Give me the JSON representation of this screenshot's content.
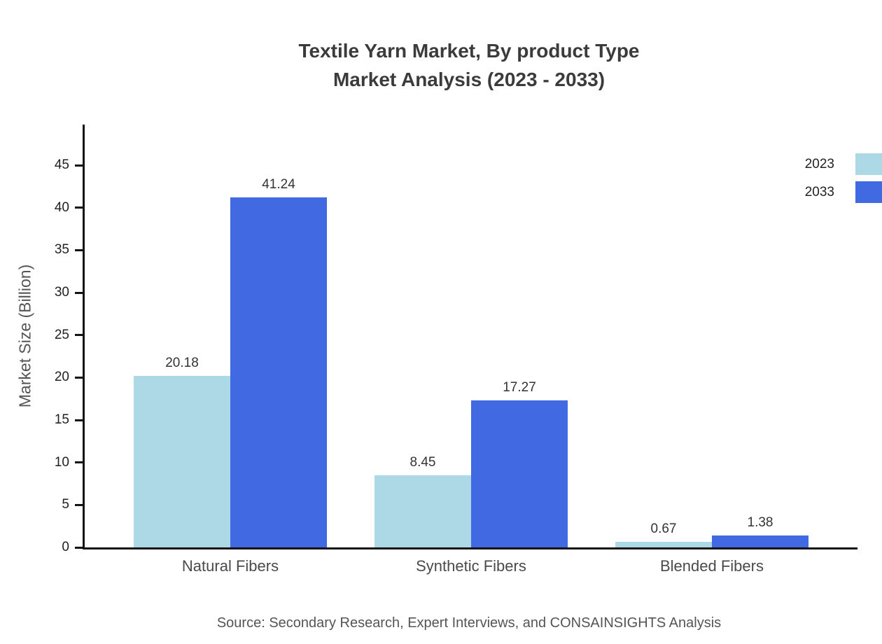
{
  "title": {
    "line1": "Textile Yarn Market, By product Type",
    "line2": "Market Analysis (2023 - 2033)"
  },
  "chart_data": {
    "type": "bar",
    "title": "Textile Yarn Market, By product Type Market Analysis (2023 - 2033)",
    "categories": [
      "Natural Fibers",
      "Synthetic Fibers",
      "Blended Fibers"
    ],
    "series": [
      {
        "name": "2023",
        "color": "#add8e6",
        "values": [
          20.18,
          8.45,
          0.67
        ]
      },
      {
        "name": "2033",
        "color": "#4169e1",
        "values": [
          41.24,
          17.27,
          1.38
        ]
      }
    ],
    "xlabel": "",
    "ylabel": "Market Size (Billion)",
    "ylim": [
      0,
      45
    ],
    "yticks": [
      0,
      5,
      10,
      15,
      20,
      25,
      30,
      35,
      40,
      45
    ],
    "grid": false,
    "legend_position": "top-right"
  },
  "source": {
    "text": "Source: Secondary Research, Expert Interviews, and CONSAINSIGHTS Analysis"
  }
}
